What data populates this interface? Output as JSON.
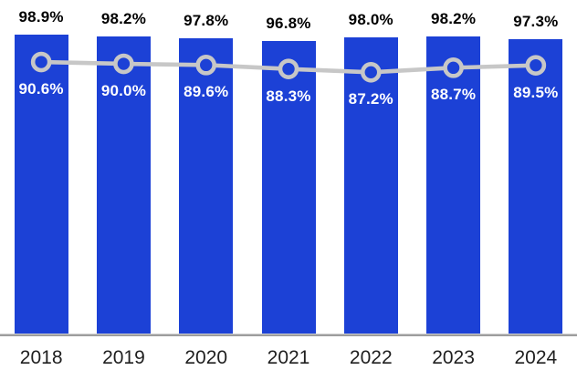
{
  "chart_data": {
    "type": "combo",
    "title": "",
    "xlabel": "",
    "ylabel": "",
    "categories": [
      "2018",
      "2019",
      "2020",
      "2021",
      "2022",
      "2023",
      "2024"
    ],
    "series": [
      {
        "name": "bar-series",
        "kind": "bar",
        "values": [
          98.9,
          98.2,
          97.8,
          96.8,
          98.0,
          98.2,
          97.3
        ],
        "labels": [
          "98.9%",
          "98.2%",
          "97.8%",
          "96.8%",
          "98.0%",
          "98.2%",
          "97.3%"
        ],
        "color": "#1C41D6",
        "label_color": "#000000",
        "label_position": "above-bar"
      },
      {
        "name": "line-series",
        "kind": "line",
        "values": [
          90.6,
          90.0,
          89.6,
          88.3,
          87.2,
          88.7,
          89.5
        ],
        "labels": [
          "90.6%",
          "90.0%",
          "89.6%",
          "88.3%",
          "87.2%",
          "88.7%",
          "89.5%"
        ],
        "color": "#C7C7C7",
        "marker": "open-circle",
        "label_color": "#FFFFFF",
        "label_position": "below-point"
      }
    ],
    "ylim": [
      0,
      110
    ],
    "grid": false,
    "legend": false,
    "y_axis_visible": false,
    "x_axis_line_color": "#9D9D9D",
    "x_tick_label_color": "#1F1F1F"
  }
}
